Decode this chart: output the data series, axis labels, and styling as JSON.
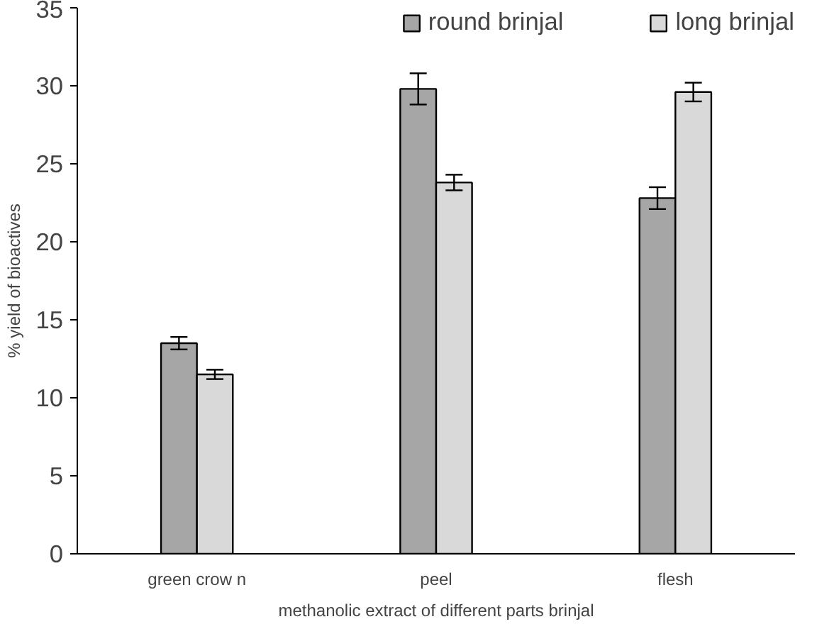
{
  "chart_data": {
    "type": "bar",
    "xlabel": "methanolic extract of different parts brinjal",
    "ylabel": "% yield of bioactives",
    "categories": [
      "green crow n",
      "peel",
      "flesh"
    ],
    "series": [
      {
        "name": "round brinjal",
        "color": "#a6a6a6",
        "values": [
          13.5,
          29.8,
          22.8
        ],
        "errors": [
          0.4,
          1.0,
          0.7
        ]
      },
      {
        "name": "long brinjal",
        "color": "#d9d9d9",
        "values": [
          11.5,
          23.8,
          29.6
        ],
        "errors": [
          0.3,
          0.5,
          0.6
        ]
      }
    ],
    "ylim": [
      0,
      35
    ],
    "yticks": [
      0,
      5,
      10,
      15,
      20,
      25,
      30,
      35
    ],
    "grid": false,
    "legend": "top"
  }
}
